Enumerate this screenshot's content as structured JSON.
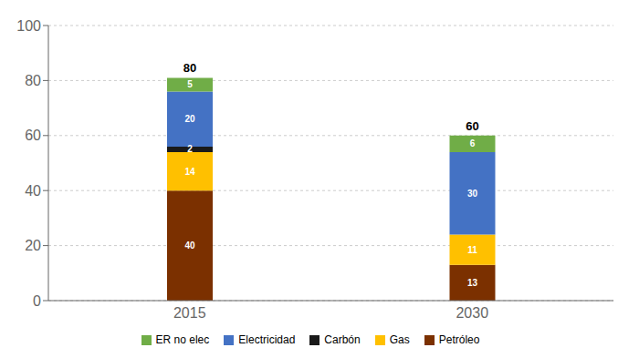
{
  "chart_data": {
    "type": "bar",
    "stacked": true,
    "categories": [
      "2015",
      "2030"
    ],
    "series": [
      {
        "name": "Petróleo",
        "color": "#7B3000",
        "values": [
          40,
          13
        ]
      },
      {
        "name": "Gas",
        "color": "#FFC000",
        "values": [
          14,
          11
        ]
      },
      {
        "name": "Carbón",
        "color": "#1A1A1A",
        "values": [
          2,
          0
        ]
      },
      {
        "name": "Electricidad",
        "color": "#4472C4",
        "values": [
          20,
          30
        ]
      },
      {
        "name": "ER no elec",
        "color": "#70AD47",
        "values": [
          5,
          6
        ]
      }
    ],
    "totals": [
      80,
      60
    ],
    "ylim": [
      0,
      100
    ],
    "yticks": [
      0,
      20,
      40,
      60,
      80,
      100
    ],
    "grid": true,
    "legend": "bottom",
    "data_labels": true
  }
}
